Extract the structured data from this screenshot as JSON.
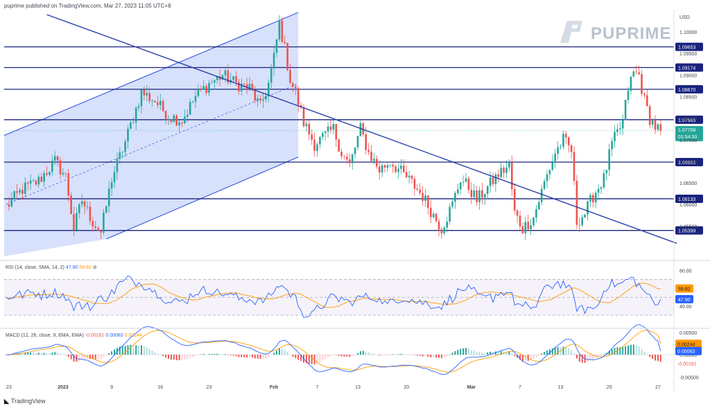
{
  "header": {
    "publish_line": "puprime published on TradingView.com, Mar 27, 2023 11:05 UTC+8"
  },
  "brand": {
    "logo_text": "PUPRIME",
    "footer": "TradingView"
  },
  "colors": {
    "bull": "#26a69a",
    "bear": "#ef5350",
    "level": "#1a237e",
    "trend": "#2a3fa8",
    "channel_fill": "#c9d7fb",
    "rsi_line": "#2962ff",
    "rsi_ma": "#ff9800",
    "macd_line": "#2962ff",
    "signal_line": "#ff9800"
  },
  "chart_data": [
    {
      "type": "candlestick",
      "currency": "USD",
      "ylim": [
        1.048,
        1.1045
      ],
      "y_ticks": [
        "1.10000",
        "1.09500",
        "1.09000",
        "1.08500",
        "1.08000",
        "1.07500",
        "1.07000",
        "1.06500",
        "1.06000",
        "1.05500"
      ],
      "x_ticks": [
        "23",
        "2023",
        "9",
        "16",
        "23",
        "Feb",
        "7",
        "13",
        "20",
        "Mar",
        "7",
        "13",
        "20",
        "27"
      ],
      "horizontal_levels": [
        "1.09653",
        "1.09174",
        "1.08670",
        "1.07965",
        "1.06983",
        "1.06133",
        "1.05399"
      ],
      "last_price": "1.07708",
      "countdown": "01:54:33",
      "path_anchors": [
        [
          0,
          1.0595
        ],
        [
          6,
          1.0635
        ],
        [
          12,
          1.0655
        ],
        [
          18,
          1.07
        ],
        [
          22,
          1.0665
        ],
        [
          25,
          1.0545
        ],
        [
          28,
          1.061
        ],
        [
          32,
          1.056
        ],
        [
          35,
          1.0535
        ],
        [
          39,
          1.066
        ],
        [
          44,
          1.0745
        ],
        [
          50,
          1.086
        ],
        [
          55,
          1.084
        ],
        [
          60,
          1.0805
        ],
        [
          65,
          1.0795
        ],
        [
          70,
          1.085
        ],
        [
          75,
          1.088
        ],
        [
          80,
          1.09
        ],
        [
          85,
          1.088
        ],
        [
          90,
          1.087
        ],
        [
          94,
          1.0825
        ],
        [
          97,
          1.088
        ],
        [
          99,
          1.094
        ],
        [
          101,
          1.102
        ],
        [
          103,
          1.096
        ],
        [
          105,
          1.089
        ],
        [
          107,
          1.086
        ],
        [
          110,
          1.079
        ],
        [
          114,
          1.074
        ],
        [
          118,
          1.076
        ],
        [
          121,
          1.0775
        ],
        [
          124,
          1.072
        ],
        [
          127,
          1.069
        ],
        [
          131,
          1.0775
        ],
        [
          134,
          1.072
        ],
        [
          138,
          1.068
        ],
        [
          142,
          1.07
        ],
        [
          146,
          1.0675
        ],
        [
          150,
          1.065
        ],
        [
          154,
          1.062
        ],
        [
          158,
          1.0575
        ],
        [
          161,
          1.0545
        ],
        [
          165,
          1.06
        ],
        [
          168,
          1.066
        ],
        [
          171,
          1.064
        ],
        [
          174,
          1.061
        ],
        [
          178,
          1.064
        ],
        [
          182,
          1.067
        ],
        [
          186,
          1.069
        ],
        [
          188,
          1.058
        ],
        [
          191,
          1.0545
        ],
        [
          195,
          1.057
        ],
        [
          199,
          1.065
        ],
        [
          203,
          1.072
        ],
        [
          206,
          1.075
        ],
        [
          209,
          1.0725
        ],
        [
          211,
          1.056
        ],
        [
          214,
          1.058
        ],
        [
          217,
          1.062
        ],
        [
          221,
          1.066
        ],
        [
          224,
          1.074
        ],
        [
          228,
          1.079
        ],
        [
          230,
          1.087
        ],
        [
          232,
          1.0905
        ],
        [
          234,
          1.09
        ],
        [
          236,
          1.084
        ],
        [
          238,
          1.08
        ],
        [
          240,
          1.078
        ],
        [
          242,
          1.0771
        ]
      ],
      "channel": {
        "upper": [
          [
            0,
            1.076
          ],
          [
            108,
            1.1045
          ]
        ],
        "lower": [
          [
            37,
            1.052
          ],
          [
            108,
            1.071
          ]
        ],
        "midline": [
          [
            0,
            1.06
          ],
          [
            108,
            1.088
          ]
        ]
      },
      "trendline": [
        [
          15,
          1.104
        ],
        [
          248,
          1.051
        ]
      ]
    },
    {
      "type": "line",
      "indicator": "RSI",
      "label": "RSI (14, close, SMA, 14, 2)",
      "values": [
        "47.90",
        "59.82"
      ],
      "legend_extra": "⊘",
      "ylim": [
        20,
        88
      ],
      "y_ticks": [
        "80.00",
        "40.00"
      ],
      "band": [
        30,
        70
      ],
      "mid": 50,
      "rsi_last": 47.9,
      "ma_last": 59.82
    },
    {
      "type": "bar",
      "indicator": "MACD",
      "label": "MACD (12, 26, close, 9, EMA, EMA)",
      "values": [
        "-0.00161",
        "0.00083",
        "0.00244"
      ],
      "ylim": [
        -0.0062,
        0.0056
      ],
      "y_ticks": [
        "0.00500",
        "0.00000",
        "-0.00500"
      ],
      "macd_last": 0.00083,
      "signal_last": 0.00244,
      "hist_last": -0.00161
    }
  ]
}
